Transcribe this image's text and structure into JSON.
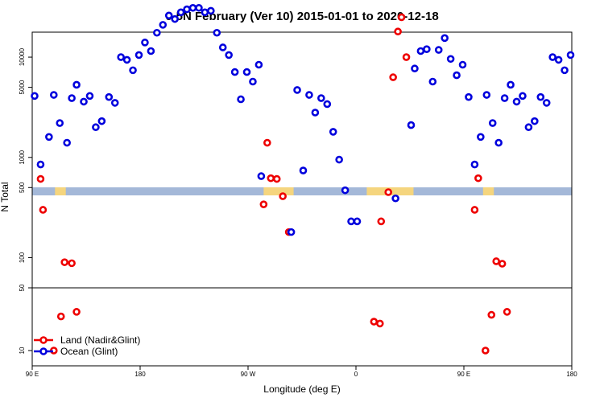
{
  "chart_data": {
    "type": "scatter",
    "title": "0-5N February (Ver 10)   2015-01-01 to 2020-12-18",
    "xlabel": "Longitude (deg E)",
    "ylabel": "N Total",
    "x_ticks": [
      {
        "lon": 90,
        "label": "90 E"
      },
      {
        "lon": 180,
        "label": "180"
      },
      {
        "lon": 270,
        "label": "90 W"
      },
      {
        "lon": 360,
        "label": "0"
      },
      {
        "lon": 450,
        "label": "90 E"
      },
      {
        "lon": 540,
        "label": "180"
      }
    ],
    "y_ticks": [
      {
        "value": 10,
        "label": "10"
      },
      {
        "value": 50,
        "label": "50"
      },
      {
        "value": 100,
        "label": "100"
      },
      {
        "value": 500,
        "label": "500"
      },
      {
        "value": 1000,
        "label": "1000"
      },
      {
        "value": 5000,
        "label": "5000"
      },
      {
        "value": 10000,
        "label": "10000"
      }
    ],
    "xlim": [
      90,
      540
    ],
    "y_scale": "log, upper section above 50, lower section below 50",
    "legend": [
      "Land (Nadir&Glint)",
      "Ocean (Glint)"
    ],
    "legend_position": "bottom-left",
    "colors": {
      "land": "#ee0000",
      "ocean": "#0000dd",
      "band_ocean": "#a4b8d8",
      "band_land": "#f5d57e"
    },
    "series": [
      {
        "name": "Land (Nadir&Glint)",
        "points": [
          {
            "lon": 97,
            "n": 610
          },
          {
            "lon": 99,
            "n": 300
          },
          {
            "lon": 117,
            "n": 90
          },
          {
            "lon": 123,
            "n": 88
          },
          {
            "lon": 114,
            "n": 24
          },
          {
            "lon": 127,
            "n": 27
          },
          {
            "lon": 108,
            "n": 10
          },
          {
            "lon": 283,
            "n": 340
          },
          {
            "lon": 286,
            "n": 1400
          },
          {
            "lon": 289,
            "n": 620
          },
          {
            "lon": 294,
            "n": 610
          },
          {
            "lon": 299,
            "n": 410
          },
          {
            "lon": 304,
            "n": 180
          },
          {
            "lon": 375,
            "n": 21
          },
          {
            "lon": 380,
            "n": 20
          },
          {
            "lon": 381,
            "n": 230
          },
          {
            "lon": 387,
            "n": 450
          },
          {
            "lon": 391,
            "n": 6300
          },
          {
            "lon": 395,
            "n": 18000
          },
          {
            "lon": 398,
            "n": 25000
          },
          {
            "lon": 402,
            "n": 10000
          },
          {
            "lon": 459,
            "n": 300
          },
          {
            "lon": 462,
            "n": 620
          },
          {
            "lon": 468,
            "n": 10
          },
          {
            "lon": 473,
            "n": 25
          },
          {
            "lon": 477,
            "n": 92
          },
          {
            "lon": 482,
            "n": 87
          },
          {
            "lon": 486,
            "n": 27
          }
        ]
      },
      {
        "name": "Ocean (Glint)",
        "points": [
          {
            "lon": 92,
            "n": 4100
          },
          {
            "lon": 97,
            "n": 850
          },
          {
            "lon": 104,
            "n": 1600
          },
          {
            "lon": 108,
            "n": 4200
          },
          {
            "lon": 113,
            "n": 2200
          },
          {
            "lon": 119,
            "n": 1400
          },
          {
            "lon": 123,
            "n": 3900
          },
          {
            "lon": 127,
            "n": 5300
          },
          {
            "lon": 133,
            "n": 3600
          },
          {
            "lon": 138,
            "n": 4100
          },
          {
            "lon": 143,
            "n": 2000
          },
          {
            "lon": 148,
            "n": 2300
          },
          {
            "lon": 154,
            "n": 4000
          },
          {
            "lon": 159,
            "n": 3500
          },
          {
            "lon": 164,
            "n": 10000
          },
          {
            "lon": 169,
            "n": 9400
          },
          {
            "lon": 174,
            "n": 7400
          },
          {
            "lon": 179,
            "n": 10500
          },
          {
            "lon": 184,
            "n": 14000
          },
          {
            "lon": 189,
            "n": 11500
          },
          {
            "lon": 194,
            "n": 17500
          },
          {
            "lon": 199,
            "n": 21000
          },
          {
            "lon": 204,
            "n": 26000
          },
          {
            "lon": 209,
            "n": 24000
          },
          {
            "lon": 214,
            "n": 28000
          },
          {
            "lon": 219,
            "n": 30000
          },
          {
            "lon": 224,
            "n": 31000
          },
          {
            "lon": 229,
            "n": 31000
          },
          {
            "lon": 234,
            "n": 28000
          },
          {
            "lon": 239,
            "n": 29000
          },
          {
            "lon": 244,
            "n": 17500
          },
          {
            "lon": 249,
            "n": 12500
          },
          {
            "lon": 254,
            "n": 10500
          },
          {
            "lon": 259,
            "n": 7100
          },
          {
            "lon": 264,
            "n": 3800
          },
          {
            "lon": 269,
            "n": 7100
          },
          {
            "lon": 274,
            "n": 5700
          },
          {
            "lon": 279,
            "n": 8400
          },
          {
            "lon": 281,
            "n": 650
          },
          {
            "lon": 306,
            "n": 180
          },
          {
            "lon": 311,
            "n": 4700
          },
          {
            "lon": 316,
            "n": 740
          },
          {
            "lon": 321,
            "n": 4200
          },
          {
            "lon": 326,
            "n": 2800
          },
          {
            "lon": 331,
            "n": 3900
          },
          {
            "lon": 336,
            "n": 3400
          },
          {
            "lon": 341,
            "n": 1800
          },
          {
            "lon": 346,
            "n": 950
          },
          {
            "lon": 351,
            "n": 470
          },
          {
            "lon": 356,
            "n": 230
          },
          {
            "lon": 361,
            "n": 230
          },
          {
            "lon": 393,
            "n": 390
          },
          {
            "lon": 406,
            "n": 2100
          },
          {
            "lon": 409,
            "n": 7700
          },
          {
            "lon": 414,
            "n": 11500
          },
          {
            "lon": 419,
            "n": 12000
          },
          {
            "lon": 424,
            "n": 5700
          },
          {
            "lon": 429,
            "n": 11800
          },
          {
            "lon": 434,
            "n": 15500
          },
          {
            "lon": 439,
            "n": 9600
          },
          {
            "lon": 444,
            "n": 6600
          },
          {
            "lon": 449,
            "n": 8400
          },
          {
            "lon": 454,
            "n": 4000
          },
          {
            "lon": 459,
            "n": 850
          },
          {
            "lon": 464,
            "n": 1600
          },
          {
            "lon": 469,
            "n": 4200
          },
          {
            "lon": 474,
            "n": 2200
          },
          {
            "lon": 479,
            "n": 1400
          },
          {
            "lon": 484,
            "n": 3900
          },
          {
            "lon": 489,
            "n": 5300
          },
          {
            "lon": 494,
            "n": 3600
          },
          {
            "lon": 499,
            "n": 4100
          },
          {
            "lon": 504,
            "n": 2000
          },
          {
            "lon": 509,
            "n": 2300
          },
          {
            "lon": 514,
            "n": 4000
          },
          {
            "lon": 519,
            "n": 3500
          },
          {
            "lon": 524,
            "n": 10000
          },
          {
            "lon": 529,
            "n": 9400
          },
          {
            "lon": 534,
            "n": 7400
          },
          {
            "lon": 539,
            "n": 10500
          }
        ]
      }
    ],
    "surface_band": {
      "lon_range": [
        90,
        540
      ],
      "land_segments": [
        [
          109,
          118
        ],
        [
          283,
          308
        ],
        [
          369,
          408
        ],
        [
          466,
          475
        ]
      ]
    }
  }
}
